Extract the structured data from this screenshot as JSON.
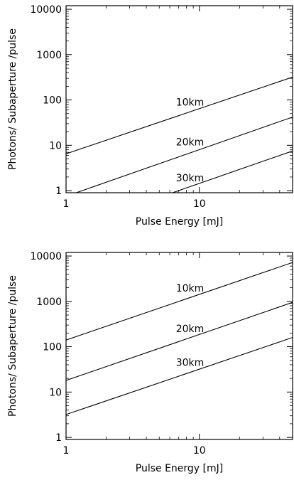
{
  "chart_data": [
    {
      "type": "line",
      "xscale": "log",
      "yscale": "log",
      "xlabel": "Pulse Energy [mJ]",
      "ylabel": "Photons/ Subaperture /pulse",
      "xlim": [
        1,
        50
      ],
      "ylim": [
        0.9,
        12000
      ],
      "xticks": [
        {
          "value": 1,
          "label": "1"
        },
        {
          "value": 10,
          "label": "10"
        }
      ],
      "yticks": [
        {
          "value": 1,
          "label": "1"
        },
        {
          "value": 10,
          "label": "10"
        },
        {
          "value": 100,
          "label": "100"
        },
        {
          "value": 1000,
          "label": "1000"
        },
        {
          "value": 10000,
          "label": "10000"
        }
      ],
      "series": [
        {
          "name": "10km",
          "x": [
            1,
            50
          ],
          "y": [
            6.5,
            320
          ],
          "label_at": [
            8.5,
            75
          ]
        },
        {
          "name": "20km",
          "x": [
            1,
            50
          ],
          "y": [
            0.75,
            42
          ],
          "label_at": [
            8.5,
            10
          ]
        },
        {
          "name": "30km",
          "x": [
            6.3,
            50
          ],
          "y": [
            0.9,
            7.5
          ],
          "label_at": [
            8.5,
            1.6
          ]
        }
      ]
    },
    {
      "type": "line",
      "xscale": "log",
      "yscale": "log",
      "xlabel": "Pulse Energy [mJ]",
      "ylabel": "Photons/ Subaperture /pulse",
      "xlim": [
        1,
        50
      ],
      "ylim": [
        0.9,
        12000
      ],
      "xticks": [
        {
          "value": 1,
          "label": "1"
        },
        {
          "value": 10,
          "label": "10"
        }
      ],
      "yticks": [
        {
          "value": 1,
          "label": "1"
        },
        {
          "value": 10,
          "label": "10"
        },
        {
          "value": 100,
          "label": "100"
        },
        {
          "value": 1000,
          "label": "1000"
        },
        {
          "value": 10000,
          "label": "10000"
        }
      ],
      "series": [
        {
          "name": "10km",
          "x": [
            1,
            50
          ],
          "y": [
            140,
            7200
          ],
          "label_at": [
            8.5,
            1650
          ]
        },
        {
          "name": "20km",
          "x": [
            1,
            50
          ],
          "y": [
            18,
            950
          ],
          "label_at": [
            8.5,
            210
          ]
        },
        {
          "name": "30km",
          "x": [
            1,
            50
          ],
          "y": [
            3.2,
            160
          ],
          "label_at": [
            8.5,
            38
          ]
        }
      ]
    }
  ]
}
